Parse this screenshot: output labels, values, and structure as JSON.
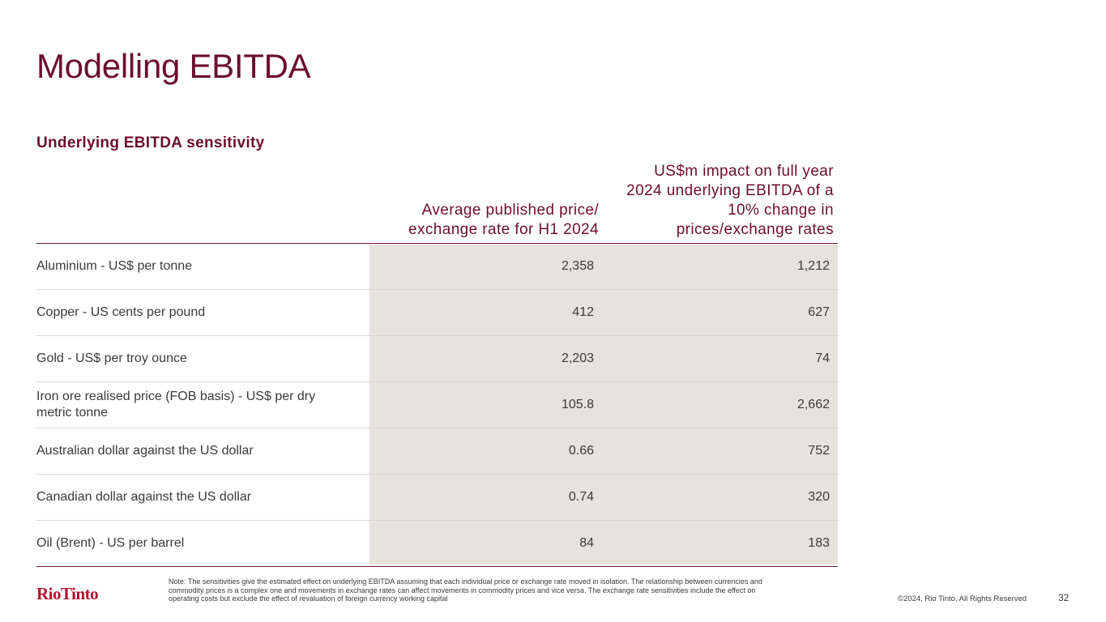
{
  "slide": {
    "title": "Modelling EBITDA",
    "subtitle": "Underlying EBITDA sensitivity"
  },
  "table": {
    "col2_header": "Average published price/ exchange rate for H1 2024",
    "col3_header": "US$m impact on full year 2024 underlying EBITDA of a 10% change in prices/exchange rates",
    "rows": [
      {
        "label": "Aluminium - US$ per tonne",
        "price": "2,358",
        "impact": "1,212"
      },
      {
        "label": "Copper - US cents per pound",
        "price": "412",
        "impact": "627"
      },
      {
        "label": "Gold - US$ per troy ounce",
        "price": "2,203",
        "impact": "74"
      },
      {
        "label": "Iron ore realised price (FOB basis) - US$ per dry metric tonne",
        "price": "105.8",
        "impact": "2,662"
      },
      {
        "label": "Australian dollar against the US dollar",
        "price": "0.66",
        "impact": "752"
      },
      {
        "label": "Canadian dollar against the US dollar",
        "price": "0.74",
        "impact": "320"
      },
      {
        "label": "Oil (Brent) - US per barrel",
        "price": "84",
        "impact": "183"
      }
    ]
  },
  "footer": {
    "logo_text": "RioTinto",
    "note": "Note: The sensitivities give the estimated effect on underlying EBITDA assuming that each individual price or exchange rate moved in isolation. The relationship between currencies and commodity prices is a complex one and movements in exchange rates can affect movements in commodity prices and vice versa. The exchange rate sensitivities include the effect on operating costs but exclude the effect of revaluation of foreign currency working capital",
    "copyright": "©2024, Rio Tinto, All Rights Reserved",
    "page_number": "32"
  },
  "colors": {
    "accent": "#6b0f2c",
    "shade": "#e6e2dc",
    "logo": "#b3112e"
  }
}
